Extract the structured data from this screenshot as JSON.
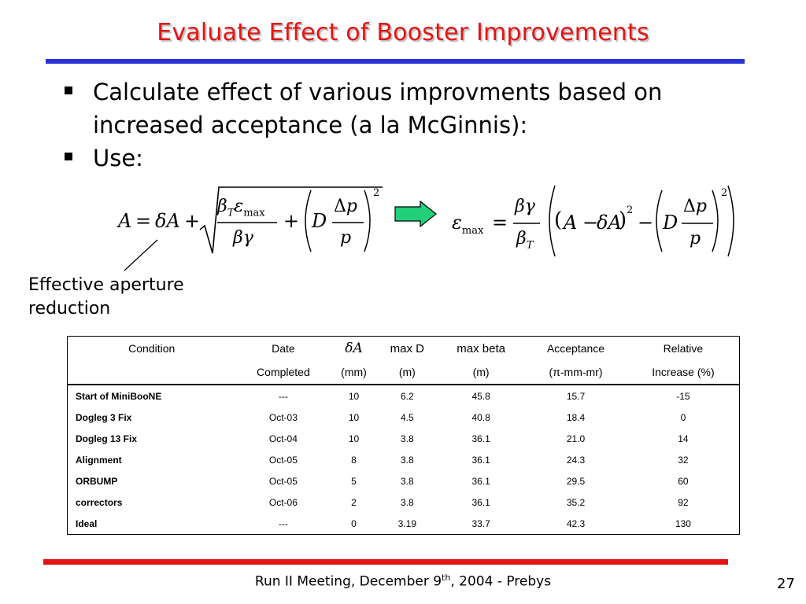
{
  "slide": {
    "title": "Evaluate Effect of Booster Improvements",
    "bullets": [
      "Calculate effect of various improvments based on increased acceptance (a la McGinnis):",
      "Use:"
    ],
    "annotation": "Effective aperture reduction",
    "table": {
      "header_row1": [
        "Condition",
        "Date",
        "δA",
        "max D",
        "max beta",
        "Acceptance",
        "Relative"
      ],
      "header_row2": [
        "",
        "Completed",
        "(mm)",
        "(m)",
        "(m)",
        "(π-mm-mr)",
        "Increase (%)"
      ],
      "rows": [
        [
          "Start of MiniBooNE",
          "---",
          "10",
          "6.2",
          "45.8",
          "15.7",
          "-15"
        ],
        [
          "Dogleg 3 Fix",
          "Oct-03",
          "10",
          "4.5",
          "40.8",
          "18.4",
          "0"
        ],
        [
          "Dogleg 13 Fix",
          "Oct-04",
          "10",
          "3.8",
          "36.1",
          "21.0",
          "14"
        ],
        [
          "Alignment",
          "Oct-05",
          "8",
          "3.8",
          "36.1",
          "24.3",
          "32"
        ],
        [
          "ORBUMP",
          "Oct-05",
          "5",
          "3.8",
          "36.1",
          "29.5",
          "60"
        ],
        [
          "correctors",
          "Oct-06",
          "2",
          "3.8",
          "36.1",
          "35.2",
          "92"
        ],
        [
          "Ideal",
          "---",
          "0",
          "3.19",
          "33.7",
          "42.3",
          "130"
        ]
      ]
    },
    "footer": {
      "text_before_sup": "Run II Meeting, December 9",
      "sup": "th",
      "text_after_sup": ", 2004  - Prebys",
      "page_number": "27"
    },
    "colors": {
      "title": "#e41414",
      "top_rule": "#2a33d6",
      "bottom_rule": "#e41414",
      "arrow_fill": "#22d07a"
    }
  }
}
